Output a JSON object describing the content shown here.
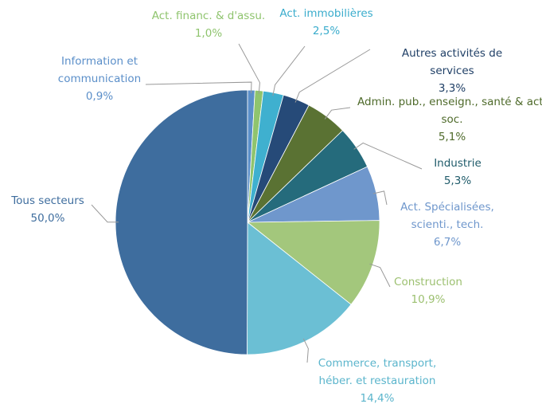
{
  "chart_data": {
    "type": "pie",
    "categories": [
      "Information et communication",
      "Act. financ. & d'assu.",
      "Act. immobilières",
      "Autres activités de services",
      "Admin. pub., enseign., santé & act. soc.",
      "Industrie",
      "Act. Spécialisées, scienti., tech.",
      "Construction",
      "Commerce, transport, héber. et restauration",
      "Tous secteurs"
    ],
    "values": [
      0.9,
      1.0,
      2.5,
      3.3,
      5.1,
      5.3,
      6.7,
      10.9,
      14.4,
      50.0
    ],
    "value_labels": [
      "0,9%",
      "1,0%",
      "2,5%",
      "3,3%",
      "5,1%",
      "5,3%",
      "6,7%",
      "10,9%",
      "14,4%",
      "50,0%"
    ],
    "colors": [
      "#5b8fc9",
      "#8fc46e",
      "#3fb0cf",
      "#264a78",
      "#5a7233",
      "#256b7c",
      "#6f97cc",
      "#a3c77c",
      "#6bbfd4",
      "#3e6d9e"
    ]
  }
}
